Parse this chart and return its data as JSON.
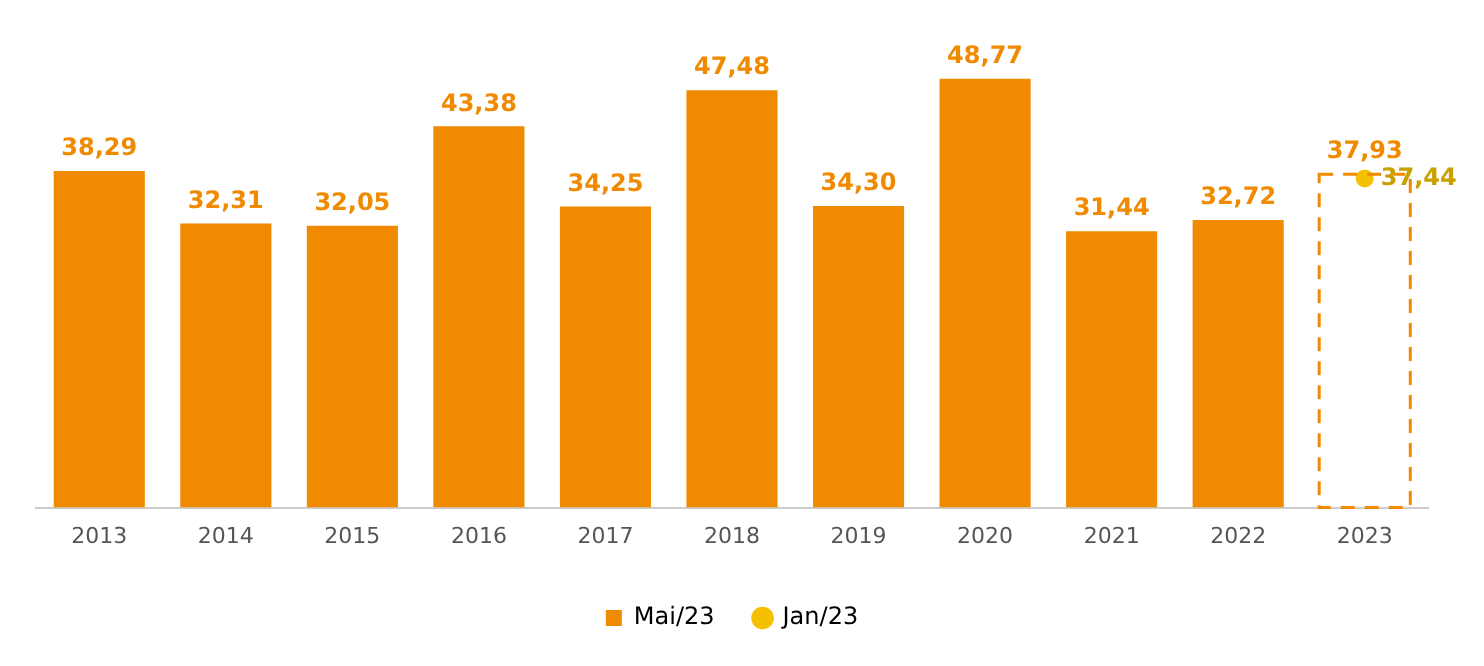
{
  "chart_data": {
    "type": "bar",
    "categories": [
      "2013",
      "2014",
      "2015",
      "2016",
      "2017",
      "2018",
      "2019",
      "2020",
      "2021",
      "2022",
      "2023"
    ],
    "series": [
      {
        "name": "Mai/23",
        "color": "#f08a00",
        "values": [
          38.29,
          32.31,
          32.05,
          43.38,
          34.25,
          47.48,
          34.3,
          48.77,
          31.44,
          32.72,
          null
        ],
        "value_labels": [
          "38,29",
          "32,31",
          "32,05",
          "43,38",
          "34,25",
          "47,48",
          "34,30",
          "48,77",
          "31,44",
          "32,72",
          null
        ]
      },
      {
        "type": "bar",
        "color": "#f08a00",
        "line_style": "dashed",
        "values": [
          null,
          null,
          null,
          null,
          null,
          null,
          null,
          null,
          null,
          null,
          37.93
        ],
        "value_labels": [
          null,
          null,
          null,
          null,
          null,
          null,
          null,
          null,
          null,
          null,
          "37,93"
        ]
      },
      {
        "name": "Jan/23",
        "type": "scatter",
        "color": "#f5c000",
        "marker": "circle",
        "values": [
          null,
          null,
          null,
          null,
          null,
          null,
          null,
          null,
          null,
          null,
          37.44
        ],
        "value_labels": [
          null,
          null,
          null,
          null,
          null,
          null,
          null,
          null,
          null,
          null,
          "37,44"
        ]
      }
    ],
    "grid": false,
    "legend": "bottom"
  }
}
